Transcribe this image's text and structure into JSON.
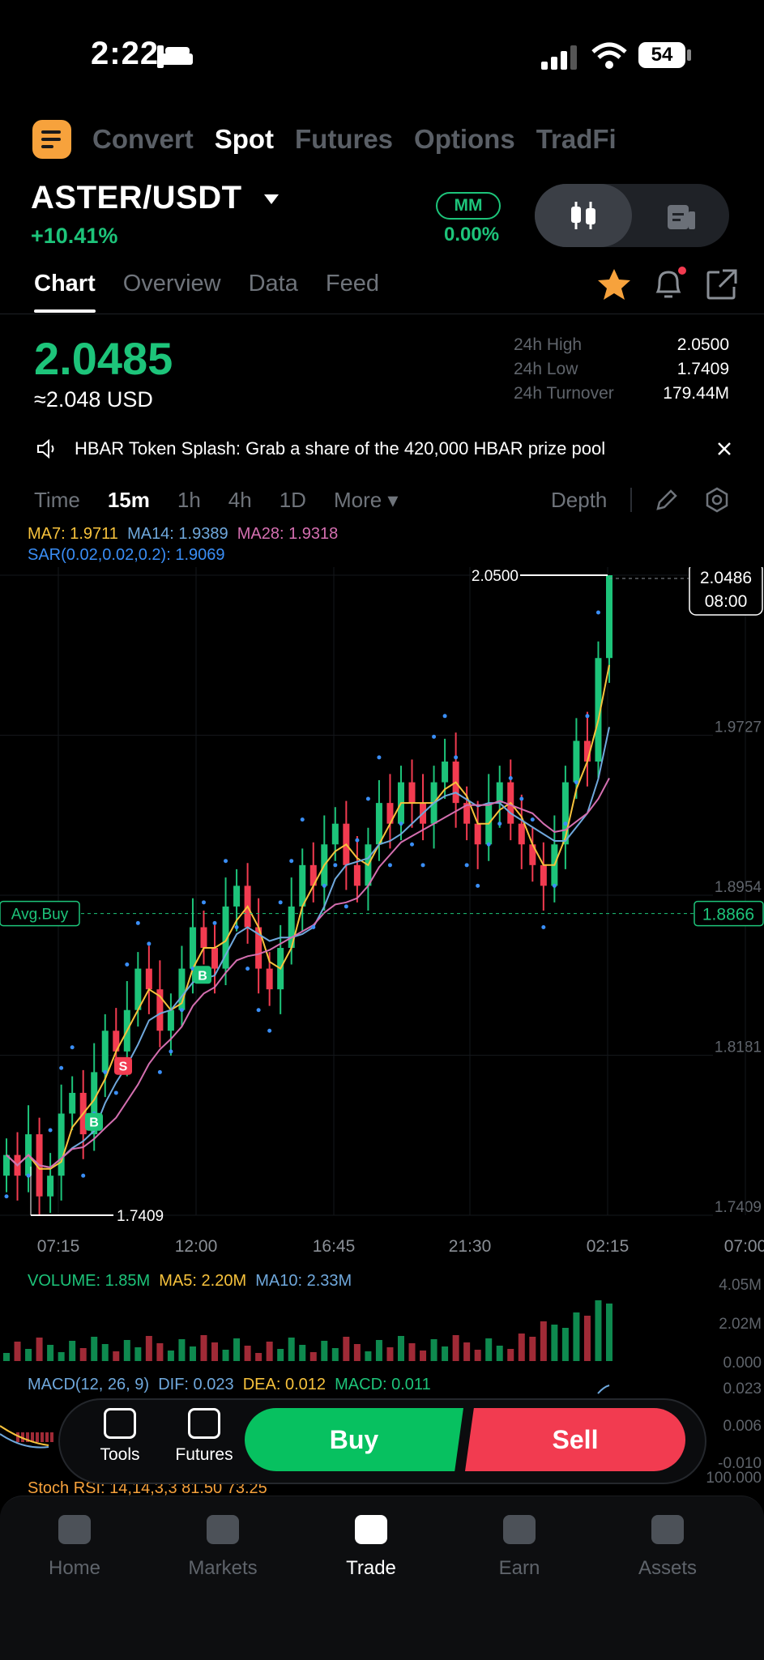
{
  "status": {
    "time": "2:22",
    "battery": "54"
  },
  "topnav": {
    "items": [
      "Convert",
      "Spot",
      "Futures",
      "Options",
      "TradFi"
    ],
    "active": "Spot"
  },
  "pair": {
    "symbol": "ASTER/USDT",
    "change": "+10.41%",
    "mm_label": "MM",
    "mm_value": "0.00%"
  },
  "tabs": {
    "items": [
      "Chart",
      "Overview",
      "Data",
      "Feed"
    ],
    "active": "Chart"
  },
  "ticker": {
    "price": "2.0485",
    "usd": "≈2.048 USD",
    "stats": [
      {
        "label": "24h High",
        "value": "2.0500"
      },
      {
        "label": "24h Low",
        "value": "1.7409"
      },
      {
        "label": "24h Turnover",
        "value": "179.44M"
      }
    ]
  },
  "banner": {
    "text": "HBAR Token Splash: Grab a share of the 420,000 HBAR prize pool"
  },
  "timeframes": {
    "items": [
      "Time",
      "15m",
      "1h",
      "4h",
      "1D",
      "More ▾"
    ],
    "active": "15m",
    "depth": "Depth"
  },
  "indicators": {
    "ma7": "MA7: 1.9711",
    "ma14": "MA14: 1.9389",
    "ma28": "MA28: 1.9318",
    "sar": "SAR(0.02,0.02,0.2): 1.9069",
    "volume": "VOLUME: 1.85M",
    "vol_ma5": "MA5: 2.20M",
    "vol_ma10": "MA10: 2.33M",
    "macd": "MACD(12, 26, 9)",
    "dif": "DIF: 0.023",
    "dea": "DEA: 0.012",
    "macd_val": "MACD: 0.011",
    "stoch": "Stoch RSI: 14,14,3,3  81.50  73.25"
  },
  "chart_data": {
    "type": "candlestick",
    "pair": "ASTER/USDT",
    "interval": "15m",
    "y_ticks": [
      "2.0500",
      "1.9727",
      "1.8954",
      "1.8181",
      "1.7409"
    ],
    "x_ticks": [
      "07:15",
      "12:00",
      "16:45",
      "21:30",
      "02:15",
      "07:00"
    ],
    "high_marker": "2.0500",
    "low_marker": "1.7409",
    "last_price_label": "2.0486",
    "last_price_time": "08:00",
    "avg_buy_label": "Avg.Buy",
    "avg_buy_value": "1.8866",
    "ylim": [
      1.7409,
      2.05
    ],
    "close": [
      1.77,
      1.76,
      1.78,
      1.75,
      1.76,
      1.79,
      1.8,
      1.78,
      1.81,
      1.83,
      1.82,
      1.84,
      1.86,
      1.85,
      1.83,
      1.84,
      1.86,
      1.88,
      1.87,
      1.86,
      1.89,
      1.9,
      1.88,
      1.86,
      1.85,
      1.87,
      1.89,
      1.91,
      1.9,
      1.92,
      1.93,
      1.91,
      1.9,
      1.92,
      1.94,
      1.93,
      1.95,
      1.94,
      1.93,
      1.95,
      1.96,
      1.94,
      1.93,
      1.92,
      1.94,
      1.95,
      1.93,
      1.92,
      1.91,
      1.9,
      1.92,
      1.95,
      1.97,
      1.96,
      2.01,
      2.05
    ],
    "volume_y_ticks": [
      "4.05M",
      "2.02M",
      "0.000"
    ],
    "macd_y_ticks": [
      "0.023",
      "0.006",
      "-0.010"
    ],
    "stoch_y_tick": "100.000",
    "markers": [
      {
        "label": "S"
      },
      {
        "label": "B"
      },
      {
        "label": "B"
      }
    ]
  },
  "trade": {
    "tools": "Tools",
    "futures": "Futures",
    "buy": "Buy",
    "sell": "Sell"
  },
  "bottom_nav": {
    "items": [
      "Home",
      "Markets",
      "Trade",
      "Earn",
      "Assets"
    ],
    "active": "Trade"
  },
  "colors": {
    "up": "#1dc47a",
    "down": "#f23b50",
    "accent": "#f7a23c",
    "ma7": "#f7c23c",
    "ma14": "#6fa8dc",
    "ma28": "#d46fb0",
    "sar": "#3a8ef6"
  }
}
